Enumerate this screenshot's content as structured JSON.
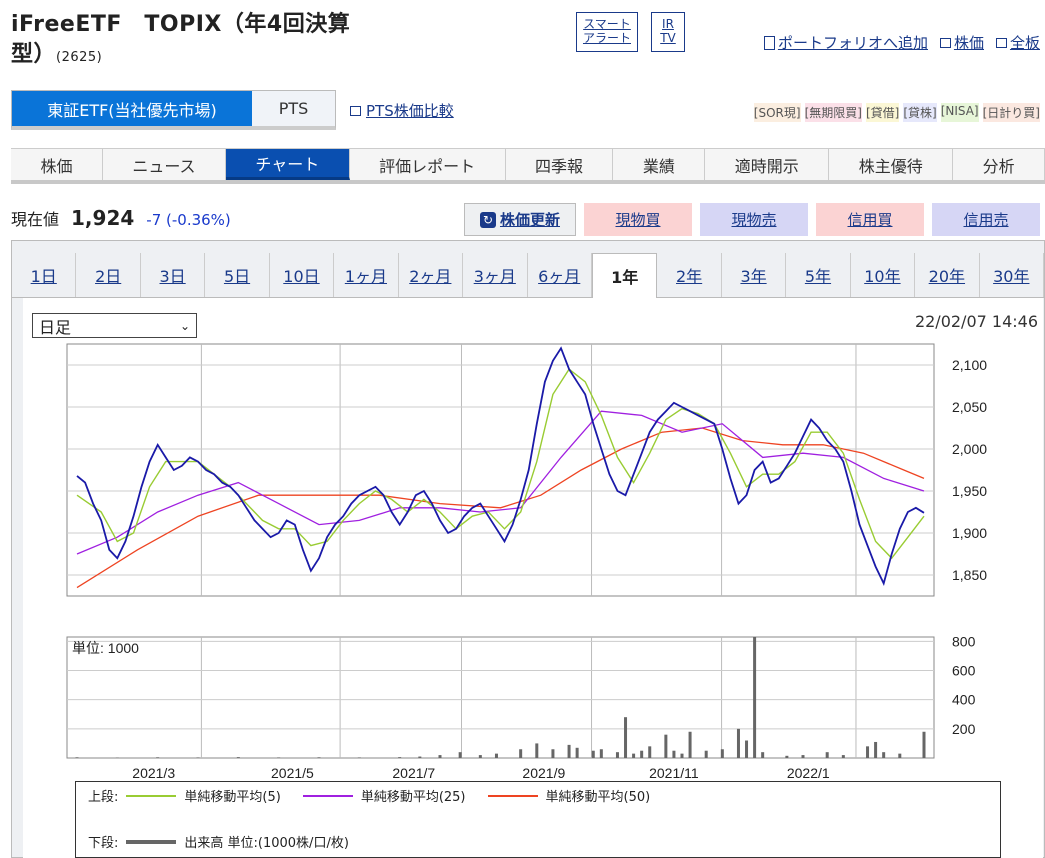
{
  "header": {
    "name": "iFreeETF　TOPIX（年4回決算",
    "name_line2": "型）",
    "code": "(2625)"
  },
  "icon_buttons": {
    "alert_line1": "スマート",
    "alert_line2": "アラート",
    "ir_line1": "IR",
    "ir_line2": "TV"
  },
  "top_links": {
    "portfolio": "ポートフォリオへ追加",
    "stock_price": "株価",
    "board": "全板"
  },
  "market_tabs": {
    "primary": "東証ETF(当社優先市場)",
    "pts": "PTS"
  },
  "pts_compare": "PTS株価比較",
  "badges": [
    "[SOR現]",
    "[無期限買]",
    "[貸借]",
    "[貸株]",
    "[NISA]",
    "[日計り買]"
  ],
  "main_tabs": [
    "株価",
    "ニュース",
    "チャート",
    "評価レポート",
    "四季報",
    "業績",
    "適時開示",
    "株主優待",
    "分析"
  ],
  "price": {
    "label": "現在値",
    "value": "1,924",
    "change": "-7 (-0.36%)"
  },
  "action_buttons": {
    "refresh": "株価更新",
    "spot_buy": "現物買",
    "spot_sell": "現物売",
    "margin_buy": "信用買",
    "margin_sell": "信用売"
  },
  "period_tabs": [
    "1日",
    "2日",
    "3日",
    "5日",
    "10日",
    "1ヶ月",
    "2ヶ月",
    "3ヶ月",
    "6ヶ月",
    "1年",
    "2年",
    "3年",
    "5年",
    "10年",
    "20年",
    "30年"
  ],
  "chart_controls": {
    "interval": "日足",
    "timestamp": "22/02/07 14:46"
  },
  "colors": {
    "price": "#1a1aa8",
    "ma5": "#99cc33",
    "ma25": "#a020e0",
    "ma50": "#ee4422",
    "volume": "#666666",
    "accent": "#0a74d8"
  },
  "legend": {
    "upper": "上段:",
    "lower": "下段:",
    "ma5": "単純移動平均(5)",
    "ma25": "単純移動平均(25)",
    "ma50": "単純移動平均(50)",
    "volume": "出来高 単位:(1000株/口/枚)"
  },
  "chart_data": {
    "type": "line",
    "price_axis": {
      "ticks": [
        1850,
        1900,
        1950,
        2000,
        2050,
        2100
      ],
      "tick_labels": [
        "1,850",
        "1,900",
        "1,950",
        "2,000",
        "2,050",
        "2,100"
      ],
      "ylim": [
        1825,
        2125
      ]
    },
    "volume_axis": {
      "unit_label": "単位: 1000",
      "ticks": [
        200,
        400,
        600,
        800
      ],
      "tick_labels": [
        "200",
        "400",
        "600",
        "800"
      ],
      "ylim": [
        0,
        830
      ]
    },
    "x_labels": [
      "2021/3",
      "2021/5",
      "2021/7",
      "2021/9",
      "2021/11",
      "2022/1"
    ],
    "price_series": [
      [
        0,
        1968
      ],
      [
        2,
        1960
      ],
      [
        4,
        1935
      ],
      [
        6,
        1915
      ],
      [
        8,
        1880
      ],
      [
        10,
        1870
      ],
      [
        12,
        1890
      ],
      [
        14,
        1920
      ],
      [
        16,
        1955
      ],
      [
        18,
        1985
      ],
      [
        20,
        2005
      ],
      [
        22,
        1990
      ],
      [
        24,
        1975
      ],
      [
        26,
        1980
      ],
      [
        28,
        1990
      ],
      [
        30,
        1985
      ],
      [
        32,
        1975
      ],
      [
        34,
        1970
      ],
      [
        36,
        1960
      ],
      [
        38,
        1955
      ],
      [
        40,
        1945
      ],
      [
        42,
        1930
      ],
      [
        44,
        1915
      ],
      [
        46,
        1905
      ],
      [
        48,
        1895
      ],
      [
        50,
        1900
      ],
      [
        52,
        1915
      ],
      [
        54,
        1910
      ],
      [
        56,
        1880
      ],
      [
        58,
        1855
      ],
      [
        60,
        1870
      ],
      [
        62,
        1895
      ],
      [
        64,
        1910
      ],
      [
        66,
        1920
      ],
      [
        68,
        1935
      ],
      [
        70,
        1945
      ],
      [
        72,
        1950
      ],
      [
        74,
        1955
      ],
      [
        76,
        1945
      ],
      [
        78,
        1925
      ],
      [
        80,
        1910
      ],
      [
        82,
        1925
      ],
      [
        84,
        1945
      ],
      [
        86,
        1950
      ],
      [
        88,
        1935
      ],
      [
        90,
        1915
      ],
      [
        92,
        1900
      ],
      [
        94,
        1905
      ],
      [
        96,
        1920
      ],
      [
        98,
        1930
      ],
      [
        100,
        1935
      ],
      [
        102,
        1920
      ],
      [
        104,
        1905
      ],
      [
        106,
        1890
      ],
      [
        108,
        1910
      ],
      [
        110,
        1940
      ],
      [
        112,
        1975
      ],
      [
        114,
        2030
      ],
      [
        116,
        2080
      ],
      [
        118,
        2105
      ],
      [
        120,
        2120
      ],
      [
        122,
        2095
      ],
      [
        124,
        2080
      ],
      [
        126,
        2065
      ],
      [
        128,
        2030
      ],
      [
        130,
        2000
      ],
      [
        132,
        1970
      ],
      [
        134,
        1950
      ],
      [
        136,
        1945
      ],
      [
        138,
        1970
      ],
      [
        140,
        1995
      ],
      [
        142,
        2020
      ],
      [
        144,
        2035
      ],
      [
        146,
        2045
      ],
      [
        148,
        2055
      ],
      [
        150,
        2050
      ],
      [
        152,
        2045
      ],
      [
        154,
        2040
      ],
      [
        156,
        2035
      ],
      [
        158,
        2030
      ],
      [
        160,
        2000
      ],
      [
        162,
        1965
      ],
      [
        164,
        1935
      ],
      [
        166,
        1945
      ],
      [
        168,
        1975
      ],
      [
        170,
        1985
      ],
      [
        172,
        1960
      ],
      [
        174,
        1965
      ],
      [
        176,
        1980
      ],
      [
        178,
        1995
      ],
      [
        180,
        2015
      ],
      [
        182,
        2035
      ],
      [
        184,
        2025
      ],
      [
        186,
        2010
      ],
      [
        188,
        2000
      ],
      [
        190,
        1985
      ],
      [
        192,
        1950
      ],
      [
        194,
        1910
      ],
      [
        196,
        1885
      ],
      [
        198,
        1860
      ],
      [
        200,
        1840
      ],
      [
        202,
        1875
      ],
      [
        204,
        1905
      ],
      [
        206,
        1925
      ],
      [
        208,
        1930
      ],
      [
        210,
        1924
      ]
    ],
    "ma5_series": [
      [
        0,
        1945
      ],
      [
        6,
        1925
      ],
      [
        10,
        1890
      ],
      [
        14,
        1900
      ],
      [
        18,
        1955
      ],
      [
        22,
        1985
      ],
      [
        26,
        1985
      ],
      [
        30,
        1985
      ],
      [
        34,
        1970
      ],
      [
        38,
        1955
      ],
      [
        42,
        1935
      ],
      [
        46,
        1915
      ],
      [
        50,
        1905
      ],
      [
        54,
        1905
      ],
      [
        58,
        1885
      ],
      [
        62,
        1890
      ],
      [
        66,
        1915
      ],
      [
        70,
        1935
      ],
      [
        74,
        1950
      ],
      [
        78,
        1940
      ],
      [
        82,
        1925
      ],
      [
        86,
        1940
      ],
      [
        90,
        1925
      ],
      [
        94,
        1905
      ],
      [
        98,
        1920
      ],
      [
        102,
        1925
      ],
      [
        106,
        1905
      ],
      [
        110,
        1925
      ],
      [
        114,
        1985
      ],
      [
        118,
        2065
      ],
      [
        122,
        2095
      ],
      [
        126,
        2080
      ],
      [
        130,
        2040
      ],
      [
        134,
        1990
      ],
      [
        138,
        1960
      ],
      [
        142,
        1995
      ],
      [
        146,
        2035
      ],
      [
        150,
        2048
      ],
      [
        154,
        2042
      ],
      [
        158,
        2030
      ],
      [
        162,
        1995
      ],
      [
        166,
        1955
      ],
      [
        170,
        1970
      ],
      [
        174,
        1970
      ],
      [
        178,
        1985
      ],
      [
        182,
        2020
      ],
      [
        186,
        2020
      ],
      [
        190,
        1995
      ],
      [
        194,
        1940
      ],
      [
        198,
        1890
      ],
      [
        202,
        1870
      ],
      [
        206,
        1895
      ],
      [
        210,
        1920
      ]
    ],
    "ma25_series": [
      [
        0,
        1875
      ],
      [
        10,
        1895
      ],
      [
        20,
        1925
      ],
      [
        30,
        1945
      ],
      [
        40,
        1960
      ],
      [
        50,
        1935
      ],
      [
        60,
        1910
      ],
      [
        70,
        1915
      ],
      [
        80,
        1930
      ],
      [
        90,
        1930
      ],
      [
        100,
        1925
      ],
      [
        110,
        1930
      ],
      [
        120,
        1990
      ],
      [
        130,
        2045
      ],
      [
        140,
        2040
      ],
      [
        150,
        2020
      ],
      [
        160,
        2030
      ],
      [
        170,
        1990
      ],
      [
        180,
        1995
      ],
      [
        190,
        1990
      ],
      [
        200,
        1965
      ],
      [
        210,
        1950
      ]
    ],
    "ma50_series": [
      [
        0,
        1835
      ],
      [
        15,
        1880
      ],
      [
        30,
        1920
      ],
      [
        45,
        1945
      ],
      [
        60,
        1945
      ],
      [
        75,
        1945
      ],
      [
        90,
        1935
      ],
      [
        105,
        1930
      ],
      [
        115,
        1945
      ],
      [
        125,
        1975
      ],
      [
        135,
        2000
      ],
      [
        145,
        2020
      ],
      [
        155,
        2025
      ],
      [
        165,
        2010
      ],
      [
        175,
        2005
      ],
      [
        185,
        2005
      ],
      [
        195,
        1995
      ],
      [
        205,
        1975
      ],
      [
        210,
        1965
      ]
    ],
    "volume_series": [
      [
        0,
        5
      ],
      [
        10,
        3
      ],
      [
        20,
        5
      ],
      [
        30,
        4
      ],
      [
        40,
        6
      ],
      [
        50,
        4
      ],
      [
        60,
        5
      ],
      [
        70,
        4
      ],
      [
        80,
        6
      ],
      [
        85,
        10
      ],
      [
        90,
        20
      ],
      [
        95,
        40
      ],
      [
        100,
        20
      ],
      [
        104,
        30
      ],
      [
        110,
        60
      ],
      [
        114,
        100
      ],
      [
        118,
        60
      ],
      [
        122,
        90
      ],
      [
        124,
        70
      ],
      [
        128,
        50
      ],
      [
        130,
        60
      ],
      [
        134,
        40
      ],
      [
        136,
        280
      ],
      [
        138,
        30
      ],
      [
        140,
        50
      ],
      [
        142,
        80
      ],
      [
        146,
        160
      ],
      [
        148,
        50
      ],
      [
        150,
        30
      ],
      [
        152,
        180
      ],
      [
        156,
        50
      ],
      [
        160,
        60
      ],
      [
        164,
        200
      ],
      [
        166,
        120
      ],
      [
        168,
        830
      ],
      [
        170,
        40
      ],
      [
        176,
        15
      ],
      [
        180,
        20
      ],
      [
        186,
        40
      ],
      [
        190,
        20
      ],
      [
        196,
        80
      ],
      [
        198,
        110
      ],
      [
        200,
        40
      ],
      [
        204,
        30
      ],
      [
        210,
        180
      ]
    ]
  }
}
